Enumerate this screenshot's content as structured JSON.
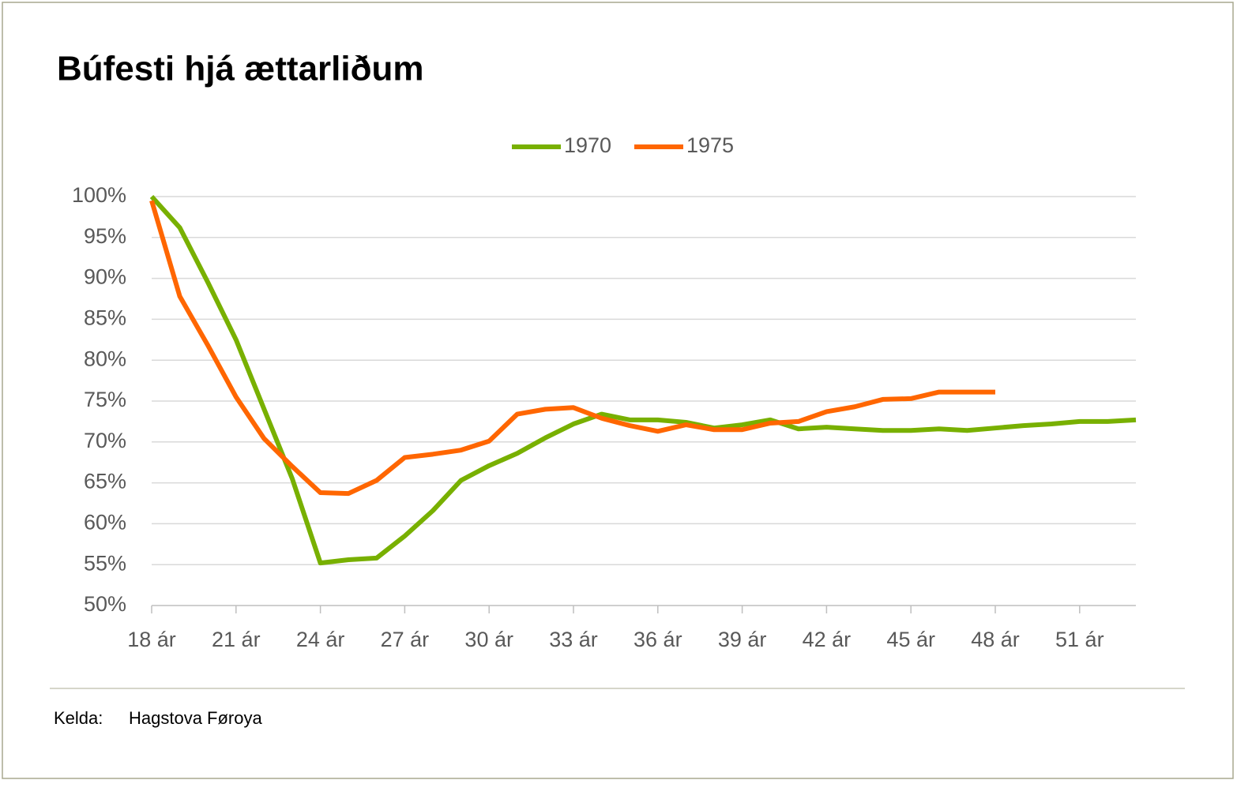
{
  "chart_data": {
    "type": "line",
    "title": "Búfesti hjá ættarliðum",
    "categories": [
      "18 ár",
      null,
      null,
      "21 ár",
      null,
      null,
      "24 ár",
      null,
      null,
      "27 ár",
      null,
      null,
      "30 ár",
      null,
      null,
      "33 ár",
      null,
      null,
      "36 ár",
      null,
      null,
      "39 ár",
      null,
      null,
      "42 ár",
      null,
      null,
      "45 ár",
      null,
      null,
      "48 ár",
      null,
      null,
      "51 ár",
      null,
      null
    ],
    "series": [
      {
        "name": "1970",
        "color": "#78b000",
        "values": [
          100,
          96.2,
          89.5,
          82.5,
          74,
          65.5,
          55.2,
          55.6,
          55.8,
          58.5,
          61.6,
          65.3,
          67.1,
          68.6,
          70.5,
          72.2,
          73.4,
          72.7,
          72.7,
          72.4,
          71.7,
          72.1,
          72.7,
          71.6,
          71.8,
          71.6,
          71.4,
          71.4,
          71.6,
          71.4,
          71.7,
          72.0,
          72.2,
          72.5,
          72.5,
          72.7
        ]
      },
      {
        "name": "1975",
        "color": "#ff6600",
        "values": [
          99.5,
          87.8,
          81.8,
          75.5,
          70.4,
          67,
          63.8,
          63.7,
          65.3,
          68.1,
          68.5,
          69,
          70.1,
          73.4,
          74,
          74.2,
          72.9,
          72,
          71.3,
          72.1,
          71.5,
          71.5,
          72.3,
          72.5,
          73.7,
          74.3,
          75.2,
          75.3,
          76.1,
          76.1,
          76.1,
          null,
          null,
          null,
          null,
          null
        ]
      }
    ],
    "ylim": [
      50,
      100
    ],
    "yticks": [
      {
        "value": 50,
        "label": "50%"
      },
      {
        "value": 55,
        "label": "55%"
      },
      {
        "value": 60,
        "label": "60%"
      },
      {
        "value": 65,
        "label": "65%"
      },
      {
        "value": 70,
        "label": "70%"
      },
      {
        "value": 75,
        "label": "75%"
      },
      {
        "value": 80,
        "label": "80%"
      },
      {
        "value": 85,
        "label": "85%"
      },
      {
        "value": 90,
        "label": "90%"
      },
      {
        "value": 95,
        "label": "95%"
      },
      {
        "value": 100,
        "label": "100%"
      }
    ],
    "grid": true,
    "legend": "top",
    "source_label": "Kelda:",
    "source": "Hagstova Føroya"
  }
}
